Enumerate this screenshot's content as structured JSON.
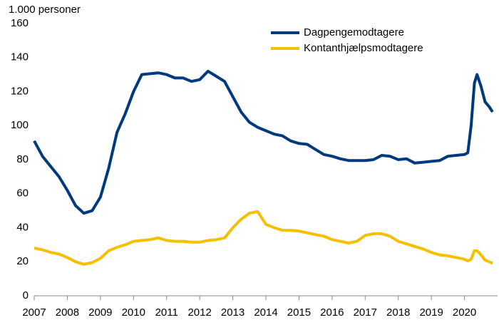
{
  "chart_data": {
    "type": "line",
    "y_label": "1.000 personer",
    "x": [
      2007.0,
      2007.25,
      2007.5,
      2007.75,
      2008.0,
      2008.25,
      2008.5,
      2008.75,
      2009.0,
      2009.25,
      2009.5,
      2009.75,
      2010.0,
      2010.25,
      2010.5,
      2010.75,
      2011.0,
      2011.25,
      2011.5,
      2011.75,
      2012.0,
      2012.25,
      2012.5,
      2012.75,
      2013.0,
      2013.25,
      2013.5,
      2013.75,
      2014.0,
      2014.25,
      2014.5,
      2014.75,
      2015.0,
      2015.25,
      2015.5,
      2015.75,
      2016.0,
      2016.25,
      2016.5,
      2016.75,
      2017.0,
      2017.25,
      2017.5,
      2017.75,
      2018.0,
      2018.25,
      2018.5,
      2018.75,
      2019.0,
      2019.25,
      2019.5,
      2019.75,
      2020.0,
      2020.1,
      2020.2,
      2020.3,
      2020.38,
      2020.5,
      2020.62,
      2020.75,
      2020.85
    ],
    "series": [
      {
        "name": "Dagpengemodtagere",
        "color": "#003a7d",
        "values": [
          91,
          82,
          76,
          70,
          62,
          53,
          48.5,
          50,
          58,
          75,
          96,
          107,
          120,
          130,
          130.5,
          131,
          130,
          128,
          128,
          126,
          127,
          132,
          129,
          126,
          117,
          108,
          102,
          99,
          97,
          95,
          94,
          91,
          89.5,
          89,
          86,
          83,
          82,
          80.5,
          79.5,
          79.5,
          79.5,
          80,
          82.5,
          82,
          80,
          80.5,
          78,
          78.5,
          79,
          79.5,
          82,
          82.5,
          83,
          84,
          100,
          125,
          130,
          123,
          114,
          111,
          108
        ]
      },
      {
        "name": "Kontanthjælpsmodtagere",
        "color": "#f5c000",
        "values": [
          28,
          27,
          25.5,
          24.5,
          22.5,
          20,
          18.5,
          19.5,
          22,
          26.5,
          28.5,
          30,
          32,
          32.5,
          33,
          34,
          32.5,
          32,
          32,
          31.5,
          31.5,
          32.5,
          33,
          34,
          40,
          45,
          48.5,
          49.5,
          42,
          40,
          38.5,
          38.5,
          38,
          37,
          36,
          35,
          33,
          32,
          31,
          32,
          35.5,
          36.5,
          36.5,
          35,
          32,
          30.5,
          29,
          27.5,
          25.5,
          24,
          23.5,
          22.5,
          21.5,
          20.5,
          21.5,
          26.5,
          26.5,
          24,
          21,
          20,
          19
        ]
      }
    ],
    "xlim": [
      2007,
      2021
    ],
    "xticks": [
      2007,
      2008,
      2009,
      2010,
      2011,
      2012,
      2013,
      2014,
      2015,
      2016,
      2017,
      2018,
      2019,
      2020
    ],
    "ylim": [
      0,
      160
    ],
    "yticks": [
      0,
      20,
      40,
      60,
      80,
      100,
      120,
      140,
      160
    ],
    "grid": false,
    "legend": "top-right"
  }
}
